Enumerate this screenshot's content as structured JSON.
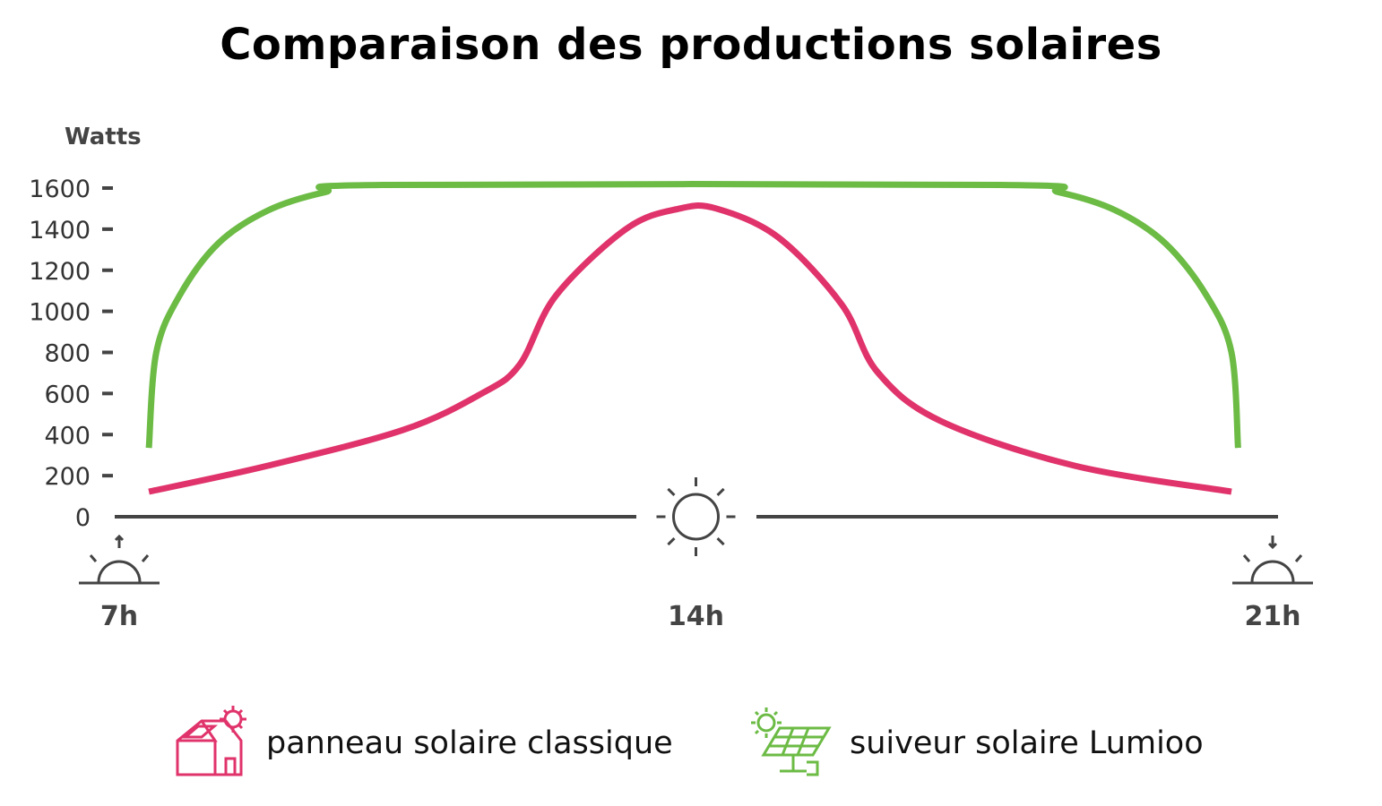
{
  "chart_data": {
    "type": "line",
    "title": "Comparaison des productions solaires",
    "ylabel": "Watts",
    "ylim": [
      0,
      1600
    ],
    "yticks": [
      "0",
      "200",
      "400",
      "600",
      "800",
      "1000",
      "1200",
      "1400",
      "1600"
    ],
    "xticks": [
      {
        "x": 7,
        "label": "7h",
        "icon": "sunrise-icon"
      },
      {
        "x": 14,
        "label": "14h",
        "icon": "sun-icon"
      },
      {
        "x": 21,
        "label": "21h",
        "icon": "sunset-icon"
      }
    ],
    "xlim": [
      7,
      21
    ],
    "grid": false,
    "legend_position": "bottom",
    "series": [
      {
        "name": "panneau solaire classique",
        "color": "#e0336b",
        "icon": "house-solar-panel-icon",
        "points": [
          [
            7.36,
            122
          ],
          [
            8.8,
            248
          ],
          [
            10.45,
            423
          ],
          [
            11.4,
            600
          ],
          [
            11.86,
            740
          ],
          [
            12.3,
            1076
          ],
          [
            13.16,
            1403
          ],
          [
            13.8,
            1500
          ],
          [
            14.25,
            1500
          ],
          [
            15.0,
            1360
          ],
          [
            15.77,
            1033
          ],
          [
            16.2,
            706
          ],
          [
            16.97,
            466
          ],
          [
            18.6,
            248
          ],
          [
            20.5,
            122
          ]
        ]
      },
      {
        "name": "suiveur solaire Lumioo",
        "color": "#6cbb45",
        "icon": "solar-tracker-icon",
        "points": [
          [
            7.36,
            335
          ],
          [
            7.45,
            800
          ],
          [
            7.73,
            1075
          ],
          [
            8.2,
            1330
          ],
          [
            8.8,
            1490
          ],
          [
            9.5,
            1580
          ],
          [
            10.2,
            1615
          ],
          [
            17.7,
            1615
          ],
          [
            18.4,
            1580
          ],
          [
            19.1,
            1490
          ],
          [
            19.7,
            1330
          ],
          [
            20.2,
            1075
          ],
          [
            20.5,
            800
          ],
          [
            20.58,
            335
          ]
        ]
      }
    ]
  }
}
